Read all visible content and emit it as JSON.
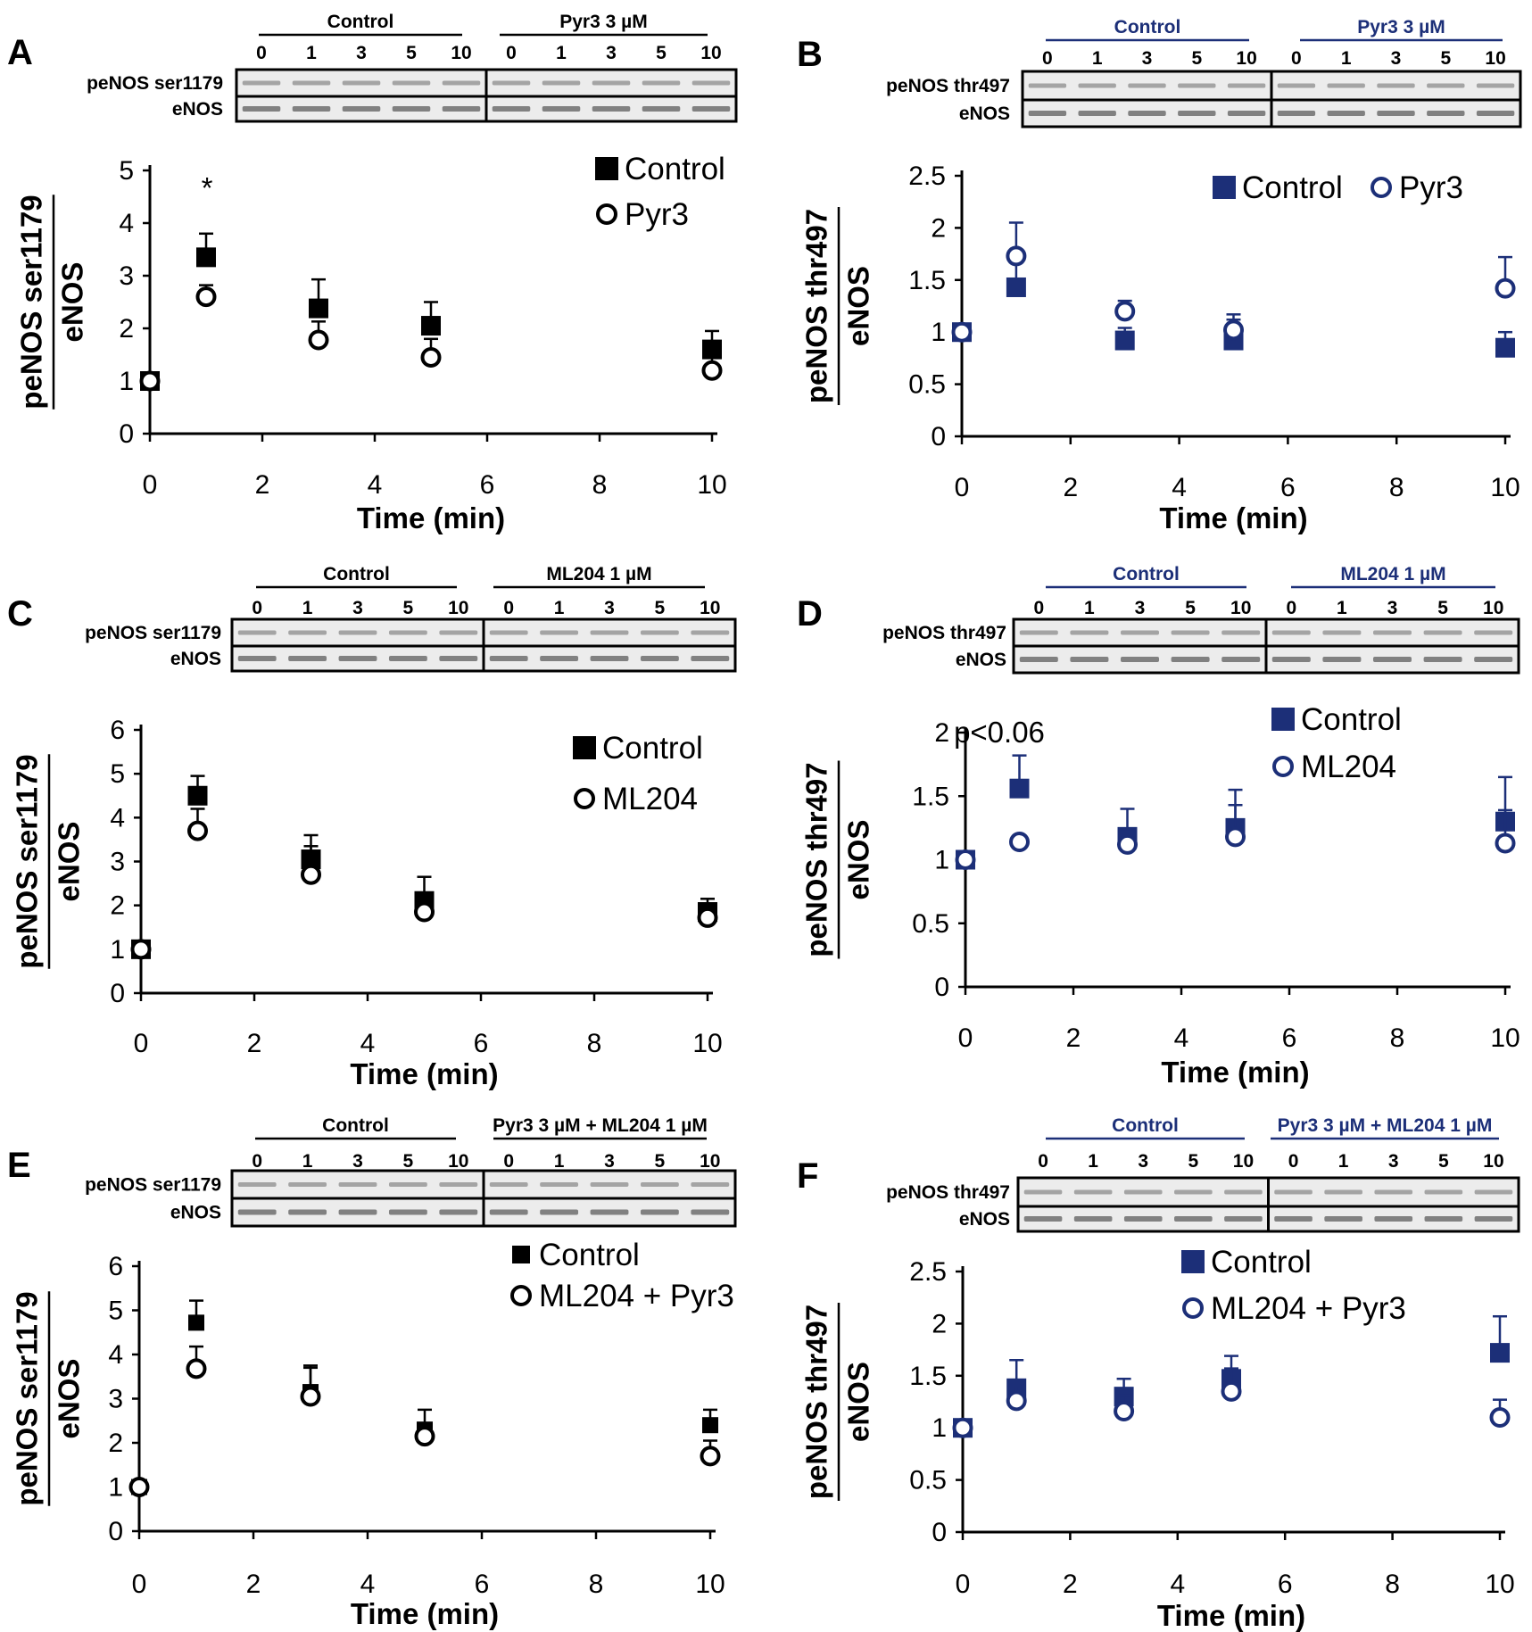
{
  "figure": {
    "panels": [
      {
        "letter": "A",
        "color": "#000000",
        "blot": {
          "group1_label": "Control",
          "group2_label": "Pyr3 3 µM",
          "time_labels": [
            "0",
            "1",
            "3",
            "5",
            "10"
          ],
          "row_labels": [
            "peNOS ser1179",
            "eNOS"
          ]
        },
        "ylabel_top": "peNOS ser1179",
        "ylabel_bottom": "eNOS",
        "annotation": "*"
      },
      {
        "letter": "B",
        "color": "#1c2f78",
        "blot": {
          "group1_label": "Control",
          "group2_label": "Pyr3 3 µM",
          "time_labels": [
            "0",
            "1",
            "3",
            "5",
            "10"
          ],
          "row_labels": [
            "peNOS thr497",
            "eNOS"
          ]
        },
        "ylabel_top": "peNOS thr497",
        "ylabel_bottom": "eNOS",
        "annotation": ""
      },
      {
        "letter": "C",
        "color": "#000000",
        "blot": {
          "group1_label": "Control",
          "group2_label": "ML204 1 µM",
          "time_labels": [
            "0",
            "1",
            "3",
            "5",
            "10"
          ],
          "row_labels": [
            "peNOS ser1179",
            "eNOS"
          ]
        },
        "ylabel_top": "peNOS ser1179",
        "ylabel_bottom": "eNOS",
        "annotation": ""
      },
      {
        "letter": "D",
        "color": "#1c2f78",
        "blot": {
          "group1_label": "Control",
          "group2_label": "ML204 1 µM",
          "time_labels": [
            "0",
            "1",
            "3",
            "5",
            "10"
          ],
          "row_labels": [
            "peNOS thr497",
            "eNOS"
          ]
        },
        "ylabel_top": "peNOS thr497",
        "ylabel_bottom": "eNOS",
        "annotation": "p<0.06"
      },
      {
        "letter": "E",
        "color": "#000000",
        "blot": {
          "group1_label": "Control",
          "group2_label": "Pyr3 3 µM   + ML204 1 µM",
          "time_labels": [
            "0",
            "1",
            "3",
            "5",
            "10"
          ],
          "row_labels": [
            "peNOS ser1179",
            "eNOS"
          ]
        },
        "ylabel_top": "peNOS ser1179",
        "ylabel_bottom": "eNOS",
        "annotation": ""
      },
      {
        "letter": "F",
        "color": "#1c2f78",
        "blot": {
          "group1_label": "Control",
          "group2_label": "Pyr3 3 µM  + ML204 1 µM",
          "time_labels": [
            "0",
            "1",
            "3",
            "5",
            "10"
          ],
          "row_labels": [
            "peNOS thr497",
            "eNOS"
          ]
        },
        "ylabel_top": "peNOS thr497",
        "ylabel_bottom": "eNOS",
        "annotation": ""
      }
    ]
  },
  "chart_data": [
    {
      "panel": "A",
      "type": "scatter",
      "xlabel": "Time (min)",
      "xlim": [
        0,
        10
      ],
      "xticks": [
        0,
        2,
        4,
        6,
        8,
        10
      ],
      "ylim": [
        0,
        5
      ],
      "yticks": [
        "0",
        "1",
        "2",
        "3",
        "4",
        "5"
      ],
      "series": [
        {
          "name": "Control",
          "marker": "square-filled",
          "x": [
            0,
            1,
            3,
            5,
            10
          ],
          "y": [
            1.0,
            3.35,
            2.38,
            2.05,
            1.6
          ],
          "err": [
            0,
            0.45,
            0.55,
            0.45,
            0.35
          ]
        },
        {
          "name": "Pyr3",
          "marker": "circle-open",
          "x": [
            0,
            1,
            3,
            5,
            10
          ],
          "y": [
            1.0,
            2.6,
            1.78,
            1.45,
            1.2
          ],
          "err": [
            0,
            0.22,
            0.35,
            0.35,
            0.5
          ]
        }
      ]
    },
    {
      "panel": "B",
      "type": "scatter",
      "xlabel": "Time (min)",
      "xlim": [
        0,
        10
      ],
      "xticks": [
        0,
        2,
        4,
        6,
        8,
        10
      ],
      "ylim": [
        0,
        2.5
      ],
      "yticks": [
        "0",
        "0.5",
        "1",
        "1.5",
        "2",
        "2.5"
      ],
      "series": [
        {
          "name": "Control",
          "marker": "square-filled",
          "x": [
            0,
            1,
            3,
            5,
            10
          ],
          "y": [
            1.0,
            1.43,
            0.92,
            0.92,
            0.85
          ],
          "err": [
            0,
            0.27,
            0.12,
            0.2,
            0.15
          ]
        },
        {
          "name": "Pyr3",
          "marker": "circle-open",
          "x": [
            0,
            1,
            3,
            5,
            10
          ],
          "y": [
            1.0,
            1.73,
            1.2,
            1.02,
            1.42
          ],
          "err": [
            0,
            0.32,
            0.1,
            0.15,
            0.3
          ]
        }
      ]
    },
    {
      "panel": "C",
      "type": "scatter",
      "xlabel": "Time (min)",
      "xlim": [
        0,
        10
      ],
      "xticks": [
        0,
        2,
        4,
        6,
        8,
        10
      ],
      "ylim": [
        0,
        6
      ],
      "yticks": [
        "0",
        "1",
        "2",
        "3",
        "4",
        "5",
        "6"
      ],
      "series": [
        {
          "name": "Control",
          "marker": "square-filled",
          "x": [
            0,
            1,
            3,
            5,
            10
          ],
          "y": [
            1.0,
            4.5,
            3.05,
            2.1,
            1.85
          ],
          "err": [
            0,
            0.45,
            0.55,
            0.55,
            0.3
          ]
        },
        {
          "name": "ML204",
          "marker": "circle-open",
          "x": [
            0,
            1,
            3,
            5,
            10
          ],
          "y": [
            1.0,
            3.7,
            2.7,
            1.85,
            1.72
          ],
          "err": [
            0,
            0.5,
            0.65,
            0.3,
            0.25
          ]
        }
      ]
    },
    {
      "panel": "D",
      "type": "scatter",
      "xlabel": "Time (min)",
      "xlim": [
        0,
        10
      ],
      "xticks": [
        0,
        2,
        4,
        6,
        8,
        10
      ],
      "ylim": [
        0,
        2
      ],
      "yticks": [
        "0",
        "0.5",
        "1",
        "1.5",
        "2"
      ],
      "series": [
        {
          "name": "Control",
          "marker": "square-filled",
          "x": [
            0,
            1,
            3,
            5,
            10
          ],
          "y": [
            1.0,
            1.56,
            1.18,
            1.25,
            1.3
          ],
          "err": [
            0,
            0.26,
            0.22,
            0.3,
            0.35
          ]
        },
        {
          "name": "ML204",
          "marker": "circle-open",
          "x": [
            0,
            1,
            3,
            5,
            10
          ],
          "y": [
            1.0,
            1.14,
            1.12,
            1.18,
            1.13
          ],
          "err": [
            0,
            0.05,
            0.1,
            0.25,
            0.26
          ]
        }
      ]
    },
    {
      "panel": "E",
      "type": "scatter",
      "xlabel": "Time (min)",
      "xlim": [
        0,
        10
      ],
      "xticks": [
        0,
        2,
        4,
        6,
        8,
        10
      ],
      "ylim": [
        0,
        6
      ],
      "yticks": [
        "0",
        "1",
        "2",
        "3",
        "4",
        "5",
        "6"
      ],
      "series": [
        {
          "name": "Control",
          "marker": "square-filled-small",
          "x": [
            0,
            1,
            3,
            5,
            10
          ],
          "y": [
            1.0,
            4.72,
            3.15,
            2.3,
            2.4
          ],
          "err": [
            0,
            0.5,
            0.6,
            0.45,
            0.35
          ]
        },
        {
          "name": "ML204 + Pyr3",
          "marker": "circle-open",
          "x": [
            0,
            1,
            3,
            5,
            10
          ],
          "y": [
            1.0,
            3.68,
            3.05,
            2.15,
            1.7
          ],
          "err": [
            0,
            0.5,
            0.65,
            0.3,
            0.35
          ]
        }
      ]
    },
    {
      "panel": "F",
      "type": "scatter",
      "xlabel": "Time (min)",
      "xlim": [
        0,
        10
      ],
      "xticks": [
        0,
        2,
        4,
        6,
        8,
        10
      ],
      "ylim": [
        0,
        2.5
      ],
      "yticks": [
        "0",
        "0.5",
        "1",
        "1.5",
        "2",
        "2.5"
      ],
      "series": [
        {
          "name": "Control",
          "marker": "square-filled",
          "x": [
            0,
            1,
            3,
            5,
            10
          ],
          "y": [
            1.0,
            1.38,
            1.3,
            1.47,
            1.72
          ],
          "err": [
            0,
            0.27,
            0.17,
            0.22,
            0.35
          ]
        },
        {
          "name": "ML204 + Pyr3",
          "marker": "circle-open",
          "x": [
            0,
            1,
            3,
            5,
            10
          ],
          "y": [
            1.0,
            1.26,
            1.16,
            1.35,
            1.1
          ],
          "err": [
            0,
            0.15,
            0.15,
            0.22,
            0.17
          ]
        }
      ]
    }
  ]
}
